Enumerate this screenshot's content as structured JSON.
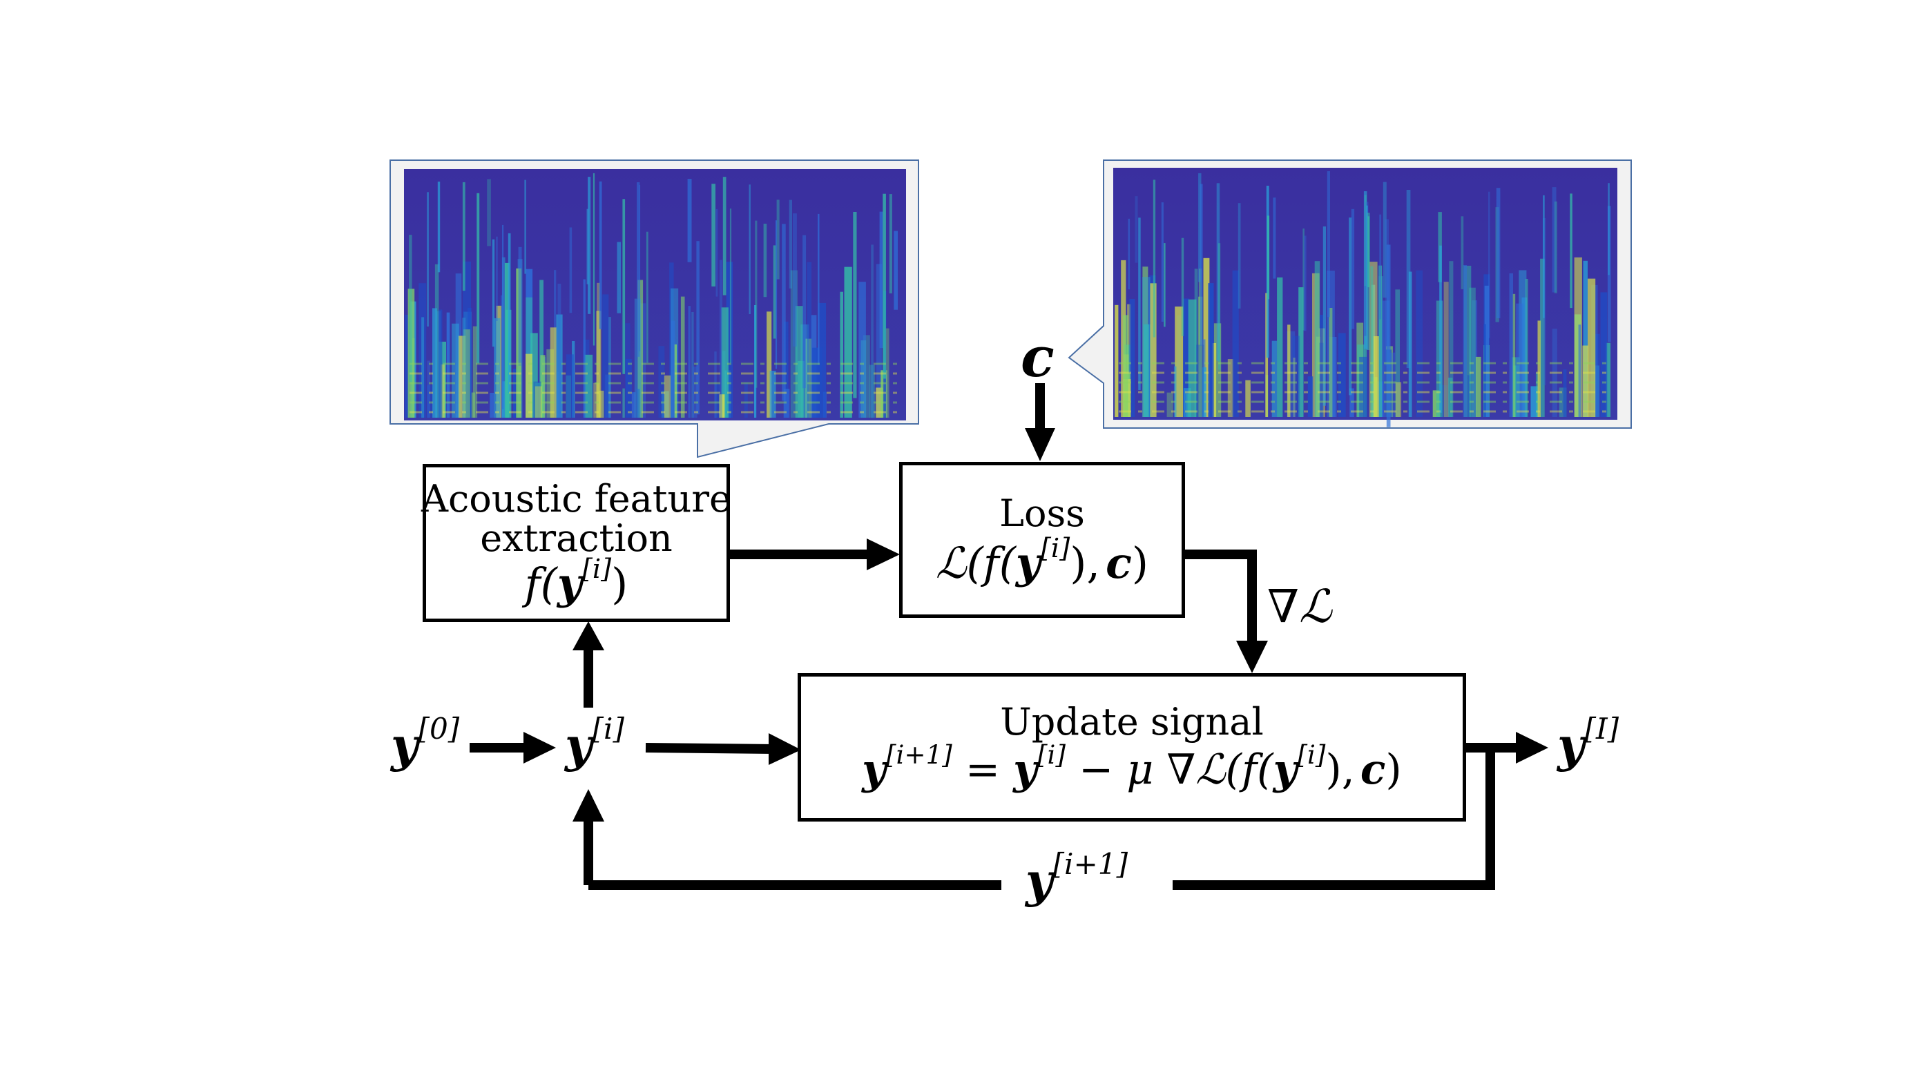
{
  "boxes": {
    "feature_extraction": {
      "line1": "Acoustic feature",
      "line2": "extraction",
      "formula": {
        "f": "f(",
        "y": "y",
        "sup": "[i]",
        "close": ")"
      }
    },
    "loss": {
      "title": "Loss",
      "formula": {
        "prefix": "ℒ(f(",
        "y": "y",
        "sup": "[i]",
        "mid": "),",
        "c": "c",
        "close": ")"
      }
    },
    "update": {
      "title": "Update signal",
      "formula": {
        "y1": "y",
        "sup1": "[i+1]",
        "eq": " = ",
        "y2": "y",
        "sup2": "[i]",
        "minus": " − μ ∇ℒ(f(",
        "y3": "y",
        "sup3": "[i]",
        "mid": "),",
        "c": "c",
        "close": ")"
      }
    }
  },
  "labels": {
    "y0": {
      "base": "y",
      "sup": "[0]"
    },
    "yi": {
      "base": "y",
      "sup": "[i]"
    },
    "yI": {
      "base": "y",
      "sup": "[I]"
    },
    "y_next": {
      "base": "y",
      "sup": "[i+1]"
    },
    "c": "c",
    "grad": "∇ℒ"
  },
  "colors": {
    "callout_border": "#4a6fa5",
    "callout_fill": "#f2f2f2",
    "spectrogram_bg": "#3b2f9e"
  }
}
